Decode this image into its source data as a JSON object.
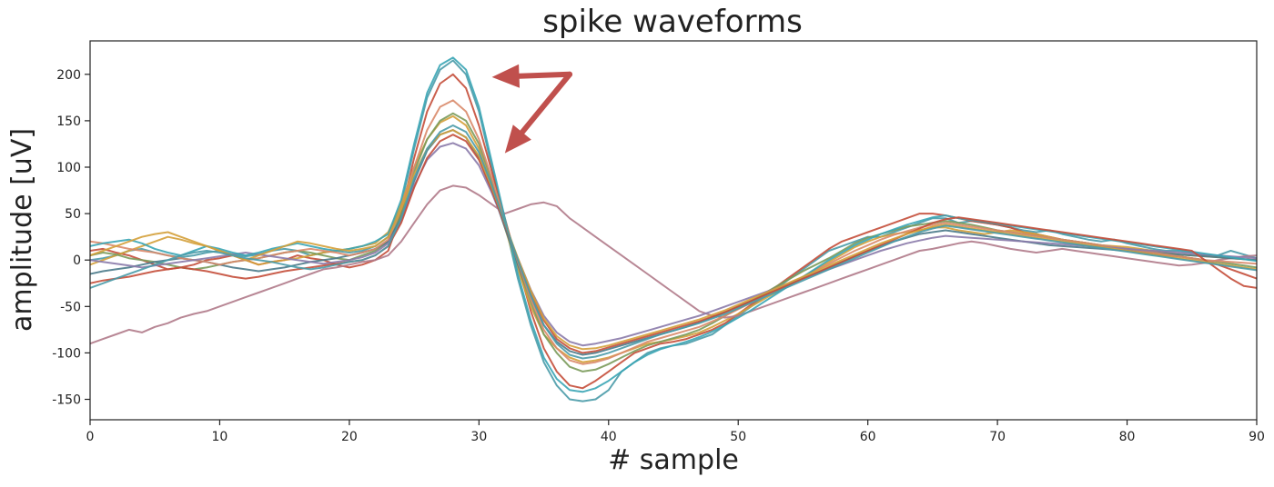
{
  "chart_data": {
    "type": "line",
    "title": "spike waveforms",
    "xlabel": "# sample",
    "ylabel": "amplitude [uV]",
    "xlim": [
      0,
      90
    ],
    "ylim": [
      -172,
      236
    ],
    "xticks": [
      0,
      10,
      20,
      30,
      40,
      50,
      60,
      70,
      80,
      90
    ],
    "yticks": [
      -150,
      -100,
      -50,
      0,
      50,
      100,
      150,
      200
    ],
    "grid": false,
    "legend": "none",
    "annotations": [
      {
        "type": "arrow",
        "color": "#c0504d",
        "from": [
          37,
          200
        ],
        "to": [
          31,
          197
        ]
      },
      {
        "type": "arrow",
        "color": "#c0504d",
        "from": [
          37,
          200
        ],
        "to": [
          32,
          115
        ]
      }
    ],
    "palette": [
      "#4a9ba8",
      "#c44e3a",
      "#d4a03a",
      "#7a9a5a",
      "#b07a8a",
      "#4a7a8a",
      "#d98a6a",
      "#8a7aaa",
      "#3aa5b5"
    ],
    "series": [
      {
        "color": "#4a9ba8",
        "values": [
          0,
          2,
          5,
          10,
          12,
          8,
          5,
          3,
          5,
          8,
          10,
          6,
          4,
          6,
          10,
          12,
          10,
          5,
          8,
          10,
          8,
          10,
          15,
          25,
          60,
          120,
          175,
          205,
          215,
          200,
          160,
          100,
          40,
          -20,
          -70,
          -110,
          -135,
          -150,
          -152,
          -150,
          -140,
          -120,
          -110,
          -100,
          -95,
          -92,
          -90,
          -85,
          -80,
          -70,
          -60,
          -50,
          -40,
          -30,
          -20,
          -10,
          0,
          10,
          15,
          20,
          25,
          25,
          30,
          35,
          40,
          45,
          45,
          40,
          42,
          40,
          38,
          35,
          32,
          30,
          32,
          28,
          25,
          22,
          20,
          22,
          18,
          15,
          12,
          10,
          10,
          8,
          5,
          5,
          10,
          6,
          2
        ]
      },
      {
        "color": "#c44e3a",
        "values": [
          10,
          12,
          8,
          5,
          0,
          -5,
          -10,
          -8,
          -5,
          0,
          2,
          5,
          0,
          -5,
          -2,
          0,
          5,
          2,
          0,
          -5,
          -8,
          -5,
          0,
          10,
          50,
          110,
          160,
          190,
          200,
          185,
          145,
          95,
          45,
          -5,
          -55,
          -95,
          -120,
          -135,
          -138,
          -130,
          -120,
          -110,
          -100,
          -95,
          -90,
          -88,
          -85,
          -80,
          -75,
          -68,
          -58,
          -48,
          -38,
          -28,
          -18,
          -8,
          2,
          12,
          20,
          25,
          30,
          35,
          40,
          45,
          50,
          50,
          48,
          45,
          42,
          40,
          38,
          35,
          30,
          28,
          25,
          22,
          20,
          18,
          15,
          12,
          10,
          8,
          6,
          5,
          4,
          2,
          0,
          -5,
          -10,
          -15,
          -20
        ]
      },
      {
        "color": "#d4a03a",
        "values": [
          -5,
          0,
          5,
          10,
          15,
          20,
          25,
          22,
          18,
          15,
          10,
          5,
          0,
          -5,
          -2,
          0,
          2,
          5,
          8,
          10,
          12,
          15,
          18,
          30,
          60,
          100,
          130,
          148,
          155,
          145,
          120,
          80,
          35,
          -10,
          -50,
          -80,
          -95,
          -105,
          -110,
          -108,
          -105,
          -100,
          -95,
          -90,
          -88,
          -85,
          -82,
          -78,
          -72,
          -65,
          -58,
          -50,
          -42,
          -34,
          -26,
          -18,
          -10,
          -2,
          6,
          14,
          20,
          25,
          28,
          30,
          32,
          35,
          35,
          32,
          30,
          28,
          30,
          32,
          30,
          28,
          25,
          22,
          20,
          18,
          16,
          15,
          14,
          12,
          10,
          8,
          6,
          5,
          4,
          3,
          2,
          1,
          0
        ]
      },
      {
        "color": "#7a9a5a",
        "values": [
          5,
          8,
          6,
          2,
          0,
          -2,
          -5,
          -8,
          -10,
          -8,
          -5,
          -2,
          0,
          2,
          5,
          8,
          10,
          8,
          5,
          2,
          0,
          5,
          10,
          20,
          50,
          95,
          130,
          150,
          158,
          150,
          125,
          85,
          40,
          -5,
          -45,
          -80,
          -100,
          -115,
          -120,
          -118,
          -112,
          -105,
          -98,
          -92,
          -88,
          -84,
          -80,
          -75,
          -68,
          -60,
          -52,
          -44,
          -36,
          -28,
          -20,
          -12,
          -5,
          2,
          10,
          18,
          24,
          28,
          32,
          36,
          38,
          40,
          42,
          40,
          38,
          35,
          32,
          30,
          28,
          26,
          24,
          22,
          20,
          18,
          16,
          14,
          12,
          10,
          8,
          6,
          4,
          2,
          0,
          -2,
          -4,
          -6,
          -8
        ]
      },
      {
        "color": "#b07a8a",
        "values": [
          -90,
          -85,
          -80,
          -75,
          -78,
          -72,
          -68,
          -62,
          -58,
          -55,
          -50,
          -45,
          -40,
          -35,
          -30,
          -25,
          -20,
          -15,
          -10,
          -8,
          -5,
          -2,
          0,
          5,
          20,
          40,
          60,
          75,
          80,
          78,
          70,
          60,
          50,
          55,
          60,
          62,
          58,
          45,
          35,
          25,
          15,
          5,
          -5,
          -15,
          -25,
          -35,
          -45,
          -55,
          -60,
          -62,
          -60,
          -55,
          -50,
          -45,
          -40,
          -35,
          -30,
          -25,
          -20,
          -15,
          -10,
          -5,
          0,
          5,
          10,
          12,
          15,
          18,
          20,
          18,
          15,
          12,
          10,
          8,
          10,
          12,
          10,
          8,
          6,
          4,
          2,
          0,
          -2,
          -4,
          -6,
          -5,
          -3,
          0,
          2,
          4,
          5
        ]
      },
      {
        "color": "#4a7a8a",
        "values": [
          -15,
          -12,
          -10,
          -8,
          -5,
          -2,
          0,
          2,
          0,
          -2,
          -5,
          -8,
          -10,
          -12,
          -10,
          -8,
          -5,
          -2,
          0,
          2,
          5,
          8,
          12,
          20,
          45,
          85,
          118,
          135,
          140,
          132,
          110,
          75,
          35,
          -5,
          -40,
          -70,
          -88,
          -98,
          -102,
          -100,
          -96,
          -92,
          -88,
          -84,
          -80,
          -76,
          -72,
          -67,
          -62,
          -56,
          -50,
          -44,
          -38,
          -32,
          -26,
          -20,
          -14,
          -8,
          -2,
          4,
          10,
          15,
          20,
          24,
          28,
          30,
          32,
          30,
          28,
          26,
          24,
          22,
          20,
          18,
          16,
          15,
          14,
          13,
          12,
          11,
          10,
          9,
          8,
          7,
          6,
          5,
          4,
          3,
          2,
          1,
          0
        ]
      },
      {
        "color": "#d98a6a",
        "values": [
          20,
          18,
          15,
          12,
          10,
          8,
          5,
          2,
          0,
          -2,
          -5,
          -2,
          0,
          2,
          5,
          8,
          10,
          12,
          10,
          8,
          5,
          8,
          12,
          22,
          55,
          100,
          140,
          165,
          172,
          160,
          130,
          88,
          42,
          -2,
          -42,
          -75,
          -95,
          -108,
          -112,
          -110,
          -106,
          -100,
          -94,
          -88,
          -84,
          -80,
          -76,
          -72,
          -66,
          -60,
          -53,
          -46,
          -39,
          -32,
          -25,
          -18,
          -11,
          -4,
          3,
          10,
          16,
          22,
          27,
          31,
          35,
          38,
          40,
          38,
          36,
          34,
          32,
          30,
          28,
          26,
          24,
          22,
          20,
          18,
          16,
          14,
          12,
          10,
          8,
          6,
          4,
          2,
          0,
          -1,
          -2,
          -3,
          -4
        ]
      },
      {
        "color": "#8a7aaa",
        "values": [
          0,
          -2,
          -4,
          -6,
          -8,
          -6,
          -4,
          -2,
          0,
          2,
          4,
          6,
          8,
          6,
          4,
          2,
          0,
          -2,
          -4,
          -2,
          0,
          3,
          8,
          18,
          42,
          80,
          108,
          122,
          126,
          120,
          102,
          72,
          38,
          2,
          -32,
          -60,
          -78,
          -88,
          -92,
          -90,
          -87,
          -84,
          -80,
          -76,
          -72,
          -68,
          -64,
          -60,
          -55,
          -50,
          -45,
          -40,
          -35,
          -30,
          -25,
          -20,
          -15,
          -10,
          -5,
          0,
          5,
          10,
          14,
          18,
          21,
          24,
          26,
          25,
          24,
          23,
          22,
          21,
          20,
          19,
          18,
          17,
          16,
          15,
          14,
          13,
          12,
          11,
          10,
          9,
          8,
          7,
          6,
          5,
          4,
          3,
          2
        ]
      },
      {
        "color": "#3aa5b5",
        "values": [
          15,
          18,
          20,
          22,
          18,
          12,
          8,
          5,
          10,
          15,
          12,
          8,
          5,
          8,
          12,
          15,
          18,
          15,
          12,
          10,
          12,
          15,
          20,
          28,
          65,
          125,
          180,
          210,
          218,
          205,
          165,
          105,
          45,
          -15,
          -65,
          -105,
          -128,
          -140,
          -142,
          -138,
          -130,
          -120,
          -110,
          -102,
          -96,
          -92,
          -88,
          -83,
          -77,
          -70,
          -62,
          -54,
          -45,
          -36,
          -27,
          -18,
          -9,
          0,
          8,
          16,
          22,
          28,
          33,
          38,
          42,
          46,
          48,
          45,
          43,
          41,
          39,
          37,
          35,
          33,
          31,
          29,
          27,
          25,
          23,
          21,
          19,
          17,
          15,
          13,
          11,
          9,
          7,
          5,
          3,
          1,
          -1
        ]
      },
      {
        "color": "#c44e3a",
        "values": [
          -25,
          -22,
          -20,
          -18,
          -15,
          -12,
          -10,
          -8,
          -10,
          -12,
          -15,
          -18,
          -20,
          -18,
          -15,
          -12,
          -10,
          -8,
          -6,
          -4,
          -2,
          0,
          5,
          15,
          40,
          78,
          110,
          128,
          135,
          128,
          108,
          75,
          38,
          0,
          -35,
          -65,
          -85,
          -95,
          -100,
          -98,
          -94,
          -90,
          -86,
          -82,
          -78,
          -74,
          -70,
          -66,
          -61,
          -56,
          -50,
          -44,
          -38,
          -32,
          -26,
          -20,
          -14,
          -8,
          -2,
          4,
          10,
          16,
          22,
          28,
          34,
          40,
          44,
          46,
          44,
          42,
          40,
          38,
          36,
          34,
          32,
          30,
          28,
          26,
          24,
          22,
          20,
          18,
          16,
          14,
          12,
          10,
          0,
          -10,
          -20,
          -28,
          -30
        ]
      },
      {
        "color": "#d4a03a",
        "values": [
          5,
          10,
          15,
          20,
          25,
          28,
          30,
          25,
          20,
          15,
          10,
          5,
          0,
          5,
          10,
          15,
          20,
          18,
          15,
          12,
          10,
          12,
          15,
          25,
          55,
          92,
          120,
          135,
          140,
          132,
          112,
          78,
          40,
          2,
          -33,
          -63,
          -82,
          -92,
          -96,
          -95,
          -92,
          -88,
          -84,
          -80,
          -76,
          -72,
          -68,
          -64,
          -59,
          -54,
          -48,
          -42,
          -36,
          -30,
          -24,
          -18,
          -12,
          -6,
          0,
          6,
          12,
          18,
          23,
          28,
          32,
          36,
          38,
          36,
          34,
          32,
          30,
          28,
          26,
          24,
          22,
          20,
          18,
          16,
          14,
          12,
          10,
          8,
          6,
          4,
          2,
          0,
          -2,
          -4,
          -6,
          -8,
          -10
        ]
      },
      {
        "color": "#4a9ba8",
        "values": [
          -30,
          -25,
          -20,
          -15,
          -10,
          -5,
          0,
          5,
          8,
          10,
          8,
          5,
          2,
          0,
          -2,
          -5,
          -8,
          -10,
          -8,
          -5,
          -2,
          0,
          5,
          15,
          45,
          88,
          120,
          138,
          145,
          138,
          116,
          80,
          40,
          0,
          -38,
          -70,
          -90,
          -102,
          -106,
          -104,
          -100,
          -95,
          -90,
          -85,
          -80,
          -76,
          -72,
          -68,
          -63,
          -58,
          -52,
          -46,
          -40,
          -34,
          -28,
          -22,
          -16,
          -10,
          -4,
          2,
          8,
          14,
          20,
          25,
          30,
          34,
          37,
          35,
          33,
          31,
          29,
          27,
          25,
          23,
          21,
          19,
          17,
          15,
          13,
          11,
          9,
          7,
          5,
          3,
          1,
          -1,
          -3,
          -5,
          -7,
          -9,
          -11
        ]
      }
    ]
  }
}
